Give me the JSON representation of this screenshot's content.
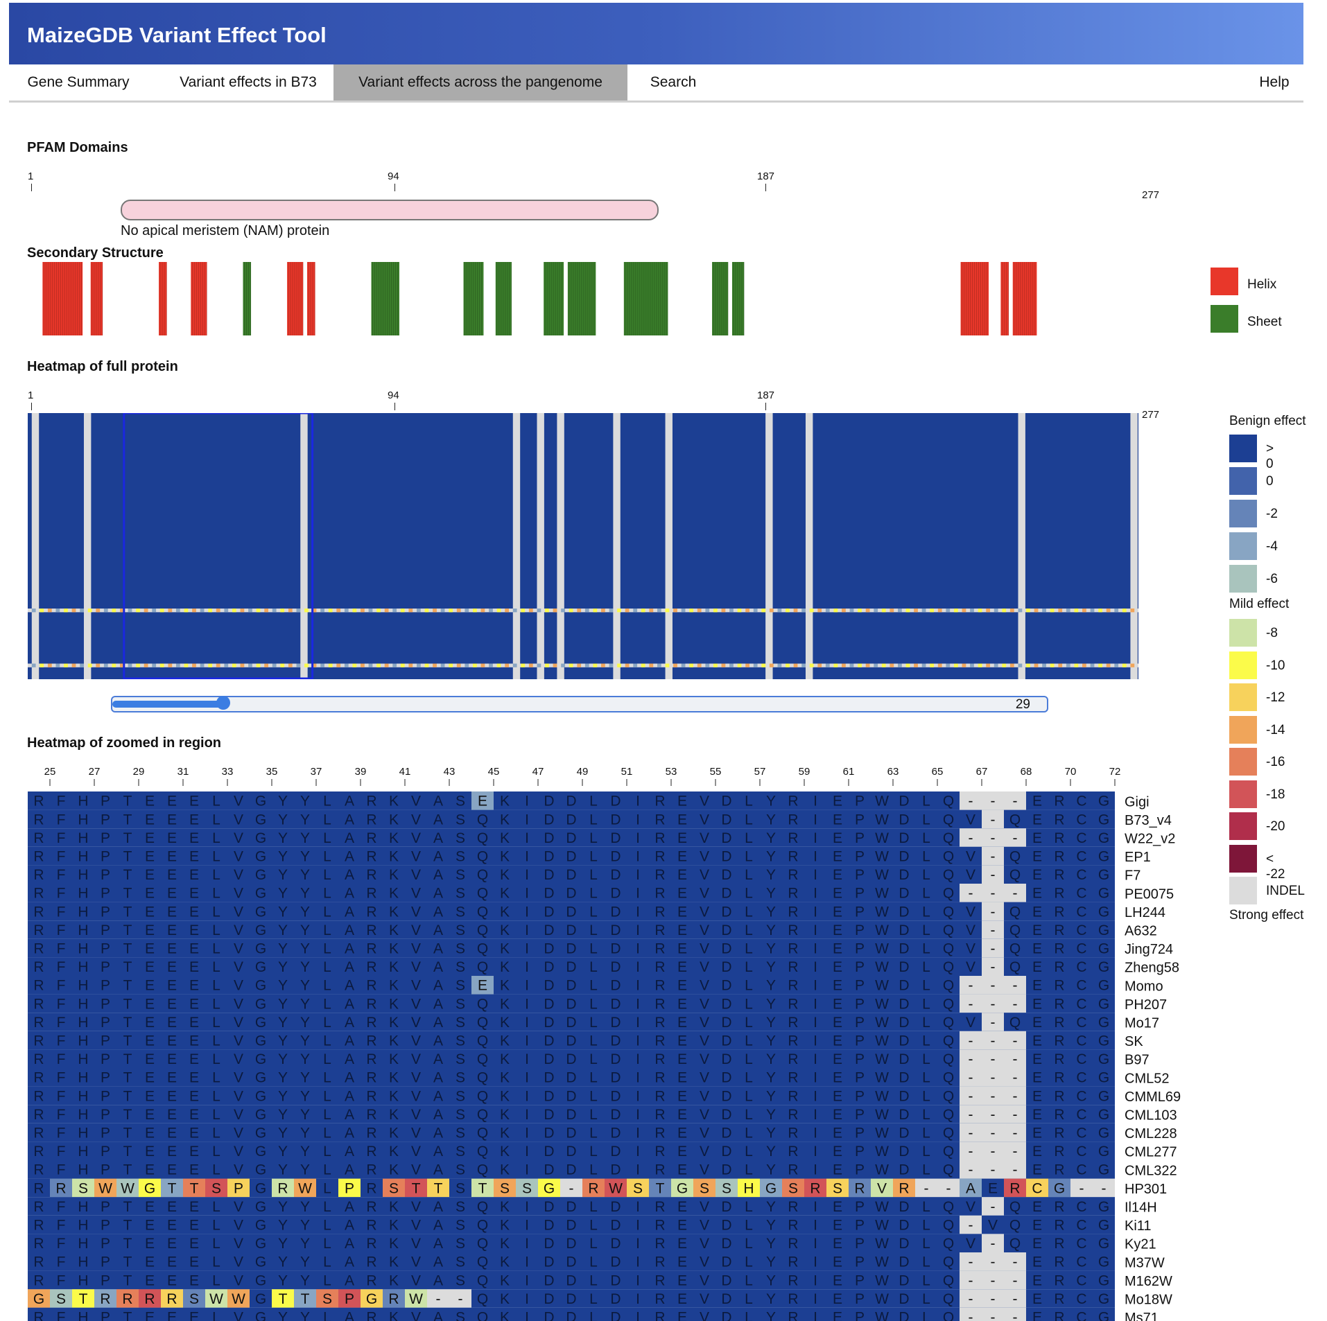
{
  "app": {
    "title": "MaizeGDB Variant Effect Tool"
  },
  "nav": {
    "tabs": [
      {
        "label": "Gene Summary",
        "active": false
      },
      {
        "label": "Variant effects in B73",
        "active": false
      },
      {
        "label": "Variant effects across the pangenome",
        "active": true
      },
      {
        "label": "Search",
        "active": false
      }
    ],
    "help": "Help"
  },
  "pfam": {
    "heading": "PFAM Domains",
    "ticks": [
      "1",
      "94",
      "187"
    ],
    "end": "277",
    "domain_label": "No apical meristem (NAM) protein",
    "domain_start": 24,
    "domain_end": 160,
    "protein_length": 277
  },
  "secondary": {
    "heading": "Secondary Structure",
    "legend": [
      {
        "label": "Helix",
        "color": "#e8372a"
      },
      {
        "label": "Sheet",
        "color": "#3a7d2a"
      }
    ],
    "segments": [
      {
        "type": "helix",
        "start": 4,
        "end": 13
      },
      {
        "type": "helix",
        "start": 16,
        "end": 18
      },
      {
        "type": "helix",
        "start": 33,
        "end": 34
      },
      {
        "type": "helix",
        "start": 41,
        "end": 44
      },
      {
        "type": "sheet",
        "start": 54,
        "end": 55
      },
      {
        "type": "helix",
        "start": 65,
        "end": 68
      },
      {
        "type": "helix",
        "start": 70,
        "end": 71
      },
      {
        "type": "sheet",
        "start": 86,
        "end": 92
      },
      {
        "type": "sheet",
        "start": 109,
        "end": 113
      },
      {
        "type": "sheet",
        "start": 117,
        "end": 120
      },
      {
        "type": "sheet",
        "start": 129,
        "end": 133
      },
      {
        "type": "sheet",
        "start": 135,
        "end": 141
      },
      {
        "type": "sheet",
        "start": 149,
        "end": 159
      },
      {
        "type": "sheet",
        "start": 171,
        "end": 174
      },
      {
        "type": "sheet",
        "start": 176,
        "end": 178
      },
      {
        "type": "helix",
        "start": 233,
        "end": 239
      },
      {
        "type": "helix",
        "start": 243,
        "end": 244
      },
      {
        "type": "helix",
        "start": 246,
        "end": 251
      }
    ]
  },
  "heatmap_full": {
    "heading": "Heatmap of full protein",
    "ticks": [
      "1",
      "94",
      "187"
    ],
    "end": "277",
    "gap_columns": [
      2,
      15,
      69,
      122,
      128,
      133,
      147,
      160,
      185,
      195,
      248,
      276
    ],
    "window_start": 25,
    "window_end": 72
  },
  "slider": {
    "value": "29"
  },
  "heatmap_zoom": {
    "heading": "Heatmap of zoomed in region",
    "ticks": [
      "25",
      "27",
      "29",
      "31",
      "33",
      "35",
      "37",
      "39",
      "41",
      "43",
      "45",
      "47",
      "49",
      "51",
      "53",
      "55",
      "57",
      "59",
      "61",
      "63",
      "65",
      "67",
      "68",
      "70",
      "72"
    ],
    "rows": [
      {
        "name": "Gigi",
        "seq": "RFHPTEEELVGYYLARKVASEKIDDLDIREVDLYRIEPWDLQ---ERCG"
      },
      {
        "name": "B73_v4",
        "seq": "RFHPTEEELVGYYLARKVASQKIDDLDIREVDLYRIEPWDLQV-QERCG"
      },
      {
        "name": "W22_v2",
        "seq": "RFHPTEEELVGYYLARKVASQKIDDLDIREVDLYRIEPWDLQ---ERCG"
      },
      {
        "name": "EP1",
        "seq": "RFHPTEEELVGYYLARKVASQKIDDLDIREVDLYRIEPWDLQV-QERCG"
      },
      {
        "name": "F7",
        "seq": "RFHPTEEELVGYYLARKVASQKIDDLDIREVDLYRIEPWDLQV-QERCG"
      },
      {
        "name": "PE0075",
        "seq": "RFHPTEEELVGYYLARKVASQKIDDLDIREVDLYRIEPWDLQ---ERCG"
      },
      {
        "name": "LH244",
        "seq": "RFHPTEEELVGYYLARKVASQKIDDLDIREVDLYRIEPWDLQV-QERCG"
      },
      {
        "name": "A632",
        "seq": "RFHPTEEELVGYYLARKVASQKIDDLDIREVDLYRIEPWDLQV-QERCG"
      },
      {
        "name": "Jing724",
        "seq": "RFHPTEEELVGYYLARKVASQKIDDLDIREVDLYRIEPWDLQV-QERCG"
      },
      {
        "name": "Zheng58",
        "seq": "RFHPTEEELVGYYLARKVASQKIDDLDIREVDLYRIEPWDLQV-QERCG"
      },
      {
        "name": "Momo",
        "seq": "RFHPTEEELVGYYLARKVASEKIDDLDIREVDLYRIEPWDLQ---ERCG"
      },
      {
        "name": "PH207",
        "seq": "RFHPTEEELVGYYLARKVASQKIDDLDIREVDLYRIEPWDLQ---ERCG"
      },
      {
        "name": "Mo17",
        "seq": "RFHPTEEELVGYYLARKVASQKIDDLDIREVDLYRIEPWDLQV-QERCG"
      },
      {
        "name": "SK",
        "seq": "RFHPTEEELVGYYLARKVASQKIDDLDIREVDLYRIEPWDLQ---ERCG"
      },
      {
        "name": "B97",
        "seq": "RFHPTEEELVGYYLARKVASQKIDDLDIREVDLYRIEPWDLQ---ERCG"
      },
      {
        "name": "CML52",
        "seq": "RFHPTEEELVGYYLARKVASQKIDDLDIREVDLYRIEPWDLQ---ERCG"
      },
      {
        "name": "CMML69",
        "seq": "RFHPTEEELVGYYLARKVASQKIDDLDIREVDLYRIEPWDLQ---ERCG"
      },
      {
        "name": "CML103",
        "seq": "RFHPTEEELVGYYLARKVASQKIDDLDIREVDLYRIEPWDLQ---ERCG"
      },
      {
        "name": "CML228",
        "seq": "RFHPTEEELVGYYLARKVASQKIDDLDIREVDLYRIEPWDLQ---ERCG"
      },
      {
        "name": "CML277",
        "seq": "RFHPTEEELVGYYLARKVASQKIDDLDIREVDLYRIEPWDLQ---ERCG"
      },
      {
        "name": "CML322",
        "seq": "RFHPTEEELVGYYLARKVASQKIDDLDIREVDLYRIEPWDLQ---ERCG"
      },
      {
        "name": "HP301",
        "seq": "RRSWWGTTSPGRWLPRSTTSTSSG-RWSTGSSHGSRSRVR--AERCG"
      },
      {
        "name": "Il14H",
        "seq": "RFHPTEEELVGYYLARKVASQKIDDLDIREVDLYRIEPWDLQV-QERCG"
      },
      {
        "name": "Ki11",
        "seq": "RFHPTEEELVGYYLARKVASQKIDDLDIREVDLYRIEPWDLQ-VQERCG"
      },
      {
        "name": "Ky21",
        "seq": "RFHPTEEELVGYYLARKVASQKIDDLDIREVDLYRIEPWDLQV-QERCG"
      },
      {
        "name": "M37W",
        "seq": "RFHPTEEELVGYYLARKVASQKIDDLDIREVDLYRIEPWDLQ---ERCG"
      },
      {
        "name": "M162W",
        "seq": "RFHPTEEELVGYYLARKVASQKIDDLDIREVDLYRIEPWDLQ---ERCG"
      },
      {
        "name": "Mo18W",
        "seq": "GSTRRRRSWWGTTSPGRW--QKIDDLDIREVDLYRIEPWDLQ---ERCG"
      },
      {
        "name": "Ms71",
        "seq": "RFHPTEEELVGYYLARKVASQKIDDLDIREVDLYRIEPWDLQ---ERCG"
      }
    ]
  },
  "effect_legend": {
    "top_label": "Benign effect",
    "mid_label": "Mild effect",
    "bottom_label": "Strong effect",
    "items": [
      {
        "label": "> 0",
        "color": "#1c3f93"
      },
      {
        "label": "0",
        "color": "#4263ab"
      },
      {
        "label": "-2",
        "color": "#6584b8"
      },
      {
        "label": "-4",
        "color": "#88a5c3"
      },
      {
        "label": "-6",
        "color": "#a9c4bd"
      },
      {
        "label": "-8",
        "color": "#cde3a8"
      },
      {
        "label": "-10",
        "color": "#fbfb4a"
      },
      {
        "label": "-12",
        "color": "#f7d25c"
      },
      {
        "label": "-14",
        "color": "#f0a55a"
      },
      {
        "label": "-16",
        "color": "#e5805a"
      },
      {
        "label": "-18",
        "color": "#d25458"
      },
      {
        "label": "-20",
        "color": "#b02e4b"
      },
      {
        "label": "< -22",
        "color": "#7e1639"
      },
      {
        "label": "INDEL",
        "color": "#dcdcdc"
      }
    ]
  }
}
